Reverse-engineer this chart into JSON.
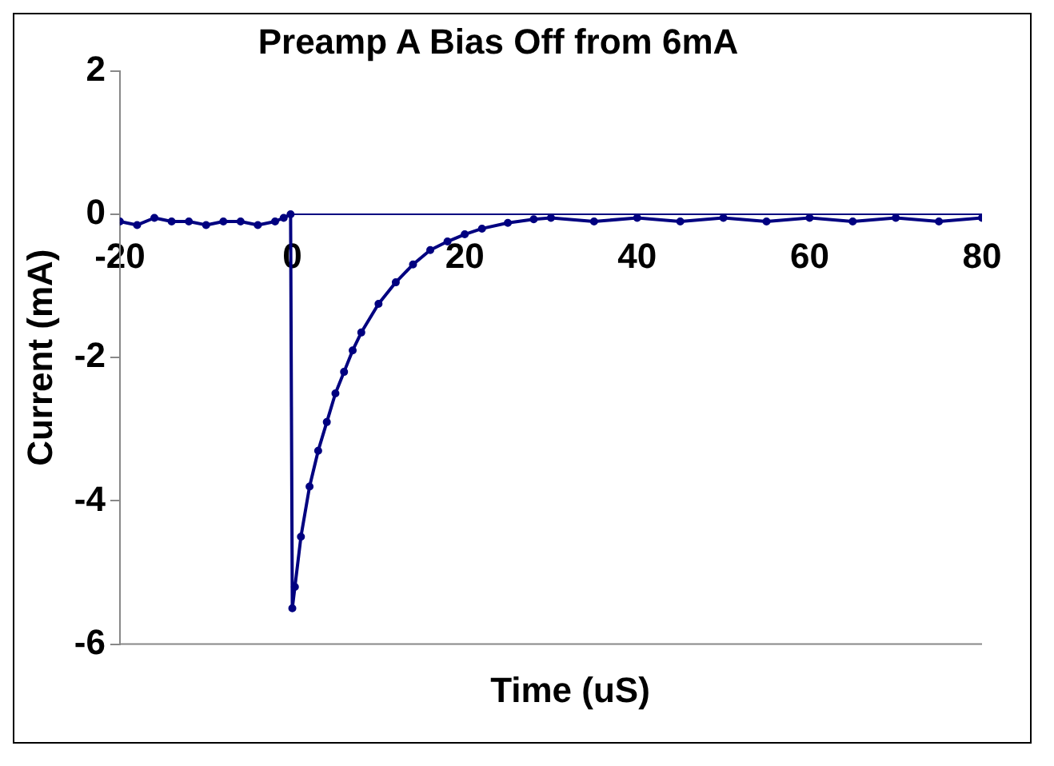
{
  "chart_data": {
    "type": "line",
    "title": "Preamp A Bias Off from 6mA",
    "xlabel": "Time (uS)",
    "ylabel": "Current (mA)",
    "xlim": [
      -20,
      80
    ],
    "xticks": [
      -20,
      0,
      20,
      40,
      60,
      80
    ],
    "ylim": [
      -6,
      2
    ],
    "yticks": [
      -6,
      -4,
      -2,
      0,
      2
    ],
    "grid": false,
    "legend": false,
    "series": [
      {
        "color": "#000080",
        "marker": "circle",
        "x": [
          -20,
          -18,
          -16,
          -14,
          -12,
          -10,
          -8,
          -6,
          -4,
          -2,
          -1,
          -0.2,
          0,
          0.3,
          1,
          2,
          3,
          4,
          5,
          6,
          7,
          8,
          10,
          12,
          14,
          16,
          18,
          20,
          22,
          25,
          28,
          30,
          35,
          40,
          45,
          50,
          55,
          60,
          65,
          70,
          75,
          80
        ],
        "values": [
          -0.1,
          -0.15,
          -0.05,
          -0.1,
          -0.1,
          -0.15,
          -0.1,
          -0.1,
          -0.15,
          -0.1,
          -0.05,
          0,
          -5.5,
          -5.2,
          -4.5,
          -3.8,
          -3.3,
          -2.9,
          -2.5,
          -2.2,
          -1.9,
          -1.65,
          -1.25,
          -0.95,
          -0.7,
          -0.5,
          -0.38,
          -0.28,
          -0.2,
          -0.12,
          -0.07,
          -0.05,
          -0.1,
          -0.05,
          -0.1,
          -0.05,
          -0.1,
          -0.05,
          -0.1,
          -0.05,
          -0.1,
          -0.05
        ]
      },
      {
        "color": "#000080",
        "marker": "none",
        "x": [
          0,
          80
        ],
        "values": [
          0,
          0
        ]
      }
    ]
  }
}
